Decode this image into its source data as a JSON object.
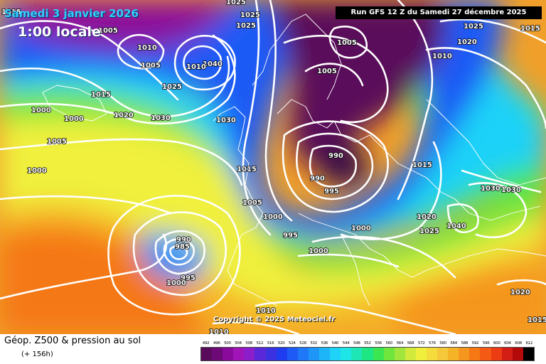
{
  "header": {
    "valid_date": "Samedi 3 janvier 2026",
    "local_time": "1:00 locale",
    "run_info": "Run GFS 12 Z du Samedi 27 décembre 2025"
  },
  "map": {
    "copyright": "Copyright © 2025 Meteociel.fr",
    "pressure_labels": [
      "1015",
      "1005",
      "1025",
      "1025",
      "1025",
      "1015",
      "1005",
      "1010",
      "1005",
      "1040",
      "1010",
      "1020",
      "1025",
      "1010",
      "1015",
      "1000",
      "1020",
      "1030",
      "1025",
      "1000",
      "1005",
      "1030",
      "1005",
      "1000",
      "1015",
      "990",
      "990",
      "995",
      "1015",
      "1005",
      "1000",
      "995",
      "1000",
      "1030",
      "1040",
      "1030",
      "1020",
      "1025",
      "1000",
      "990",
      "985",
      "995",
      "1000",
      "1010",
      "1010",
      "1020",
      "1015"
    ]
  },
  "legend": {
    "title": "Géop. Z500 & pression au sol",
    "lead_time": "(+ 156h)",
    "scale_values": [
      "492",
      "496",
      "500",
      "504",
      "508",
      "512",
      "516",
      "520",
      "524",
      "528",
      "532",
      "536",
      "540",
      "544",
      "548",
      "552",
      "556",
      "560",
      "564",
      "568",
      "572",
      "576",
      "580",
      "584",
      "588",
      "592",
      "596",
      "600",
      "604",
      "608",
      "612"
    ],
    "scale_colors": [
      "#5a0a5a",
      "#6e0a78",
      "#8a0a9c",
      "#a014b8",
      "#8c1ecc",
      "#5a28d8",
      "#3a32e0",
      "#1e3cf0",
      "#1e5af5",
      "#1e78f8",
      "#1e96f8",
      "#1eb4f8",
      "#1ed2f8",
      "#1ee6e6",
      "#1ee6b4",
      "#1ee682",
      "#3ce650",
      "#6ee63c",
      "#a0e63c",
      "#d2ea3c",
      "#f0f03c",
      "#f5dc3c",
      "#f5c83c",
      "#f5b428",
      "#f5961e",
      "#f57814",
      "#f55a14",
      "#eb3c14",
      "#d21e14",
      "#b40a0a",
      "#000000"
    ],
    "colors": {
      "ocean_deep": "#5a0a5a",
      "warm": "#f57814"
    }
  }
}
